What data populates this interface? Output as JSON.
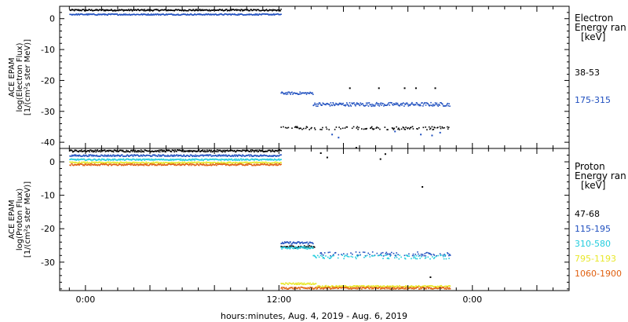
{
  "chart_data": [
    {
      "type": "scatter",
      "panel": "electron",
      "ylabel_lines": [
        "ACE EPAM",
        "log(Electron Flux)",
        "[1/(cm²s ster MeV)]"
      ],
      "ylim": [
        -42,
        4
      ],
      "yticks": [
        0,
        -10,
        -20,
        -30,
        -40
      ],
      "legend_title_lines": [
        "Electron",
        "Energy ran",
        "[keV]"
      ],
      "series": [
        {
          "name": "38-53",
          "color": "#000000",
          "segments": [
            {
              "t0": 0,
              "t1": 13.1,
              "y": 2.7,
              "noise": 0.25
            },
            {
              "t0": 13.1,
              "t1": 23.6,
              "y": -35.5,
              "noise": 0.5,
              "gap": true
            }
          ],
          "points": [
            [
              17.4,
              -22.5
            ],
            [
              19.2,
              -22.5
            ],
            [
              20.8,
              -22.5
            ],
            [
              21.5,
              -22.5
            ],
            [
              22.7,
              -22.5
            ]
          ]
        },
        {
          "name": "175-315",
          "color": "#1f4fbf",
          "segments": [
            {
              "t0": 0,
              "t1": 13.1,
              "y": 1.3,
              "noise": 0.2
            },
            {
              "t0": 13.1,
              "t1": 15.1,
              "y": -24.2,
              "noise": 0.4
            },
            {
              "t0": 15.1,
              "t1": 23.6,
              "y": -27.8,
              "noise": 0.6
            }
          ],
          "points": [
            [
              16.3,
              -37.5
            ],
            [
              16.7,
              -38.5
            ],
            [
              20.2,
              -36.5
            ],
            [
              21.8,
              -37.5
            ],
            [
              22.5,
              -37.8
            ],
            [
              23.0,
              -36.9
            ]
          ]
        }
      ]
    },
    {
      "type": "scatter",
      "panel": "proton",
      "ylabel_lines": [
        "ACE EPAM",
        "log(Proton Flux)",
        "[1/(cm²s ster MeV)]"
      ],
      "ylim": [
        -38.5,
        4
      ],
      "yticks": [
        0,
        -10,
        -20,
        -30
      ],
      "legend_title_lines": [
        "Proton",
        "Energy ran",
        "[keV]"
      ],
      "xlabel": "hours:minutes, Aug.  4, 2019 - Aug.  6, 2019",
      "xticks": [
        {
          "t": 1.0,
          "label": "0:00"
        },
        {
          "t": 13.0,
          "label": "12:00"
        },
        {
          "t": 25.0,
          "label": "0:00"
        }
      ],
      "xlim": [
        -0.6,
        31.0
      ],
      "series": [
        {
          "name": "47-68",
          "color": "#000000",
          "segments": [
            {
              "t0": 0,
              "t1": 13.1,
              "y": 3.2,
              "noise": 0.3
            },
            {
              "t0": 13.1,
              "t1": 15.2,
              "y": -25.5,
              "noise": 0.4
            }
          ],
          "points": [
            [
              15.6,
              2.6
            ],
            [
              16.0,
              1.3
            ],
            [
              17.8,
              4.2
            ],
            [
              19.3,
              0.8
            ],
            [
              19.6,
              2.3
            ],
            [
              21.9,
              -7.5
            ],
            [
              22.4,
              -34.5
            ]
          ]
        },
        {
          "name": "115-195",
          "color": "#1f4fbf",
          "segments": [
            {
              "t0": 0,
              "t1": 13.1,
              "y": 1.8,
              "noise": 0.25
            },
            {
              "t0": 13.1,
              "t1": 15.1,
              "y": -24.3,
              "noise": 0.35
            },
            {
              "t0": 15.4,
              "t1": 23.6,
              "y": -27.6,
              "noise": 0.6,
              "gap": true
            }
          ],
          "points": []
        },
        {
          "name": "310-580",
          "color": "#22ccdd",
          "segments": [
            {
              "t0": 0,
              "t1": 13.1,
              "y": 0.6,
              "noise": 0.2
            },
            {
              "t0": 13.1,
              "t1": 15.1,
              "y": -25.8,
              "noise": 0.35
            },
            {
              "t0": 15.1,
              "t1": 23.6,
              "y": -28.5,
              "noise": 0.6,
              "gap": true
            }
          ],
          "points": []
        },
        {
          "name": "795-1193",
          "color": "#e8e82a",
          "segments": [
            {
              "t0": 0,
              "t1": 13.1,
              "y": -0.3,
              "noise": 0.2
            },
            {
              "t0": 13.1,
              "t1": 15.3,
              "y": -36.5,
              "noise": 0.25
            },
            {
              "t0": 15.3,
              "t1": 23.6,
              "y": -37.3,
              "noise": 0.25
            }
          ],
          "points": []
        },
        {
          "name": "1060-1900",
          "color": "#e06010",
          "segments": [
            {
              "t0": 0,
              "t1": 13.1,
              "y": -0.9,
              "noise": 0.25
            },
            {
              "t0": 13.1,
              "t1": 23.6,
              "y": -37.8,
              "noise": 0.3
            }
          ],
          "points": []
        }
      ]
    }
  ]
}
